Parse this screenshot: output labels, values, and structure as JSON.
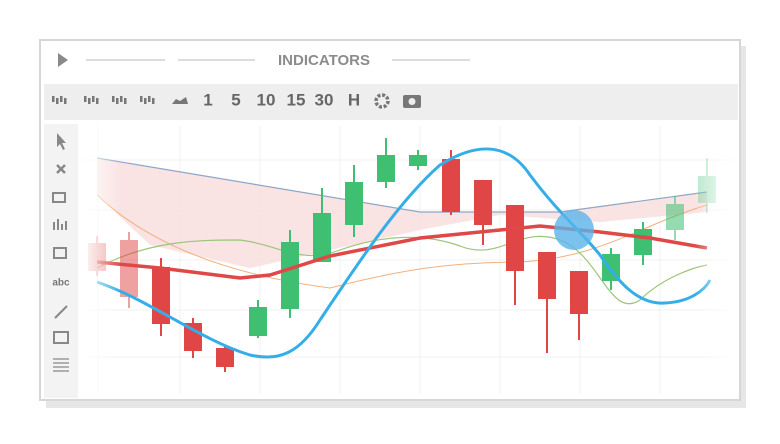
{
  "header": {
    "title": "INDICATORS"
  },
  "toolbar": {
    "intervals": [
      "1",
      "5",
      "10",
      "15",
      "30",
      "H"
    ]
  },
  "sidebar": {
    "text_tool": "abc"
  }
}
